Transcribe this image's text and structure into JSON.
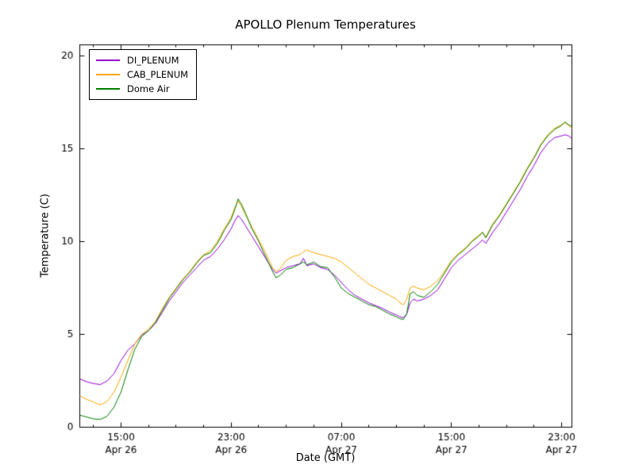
{
  "chart_data": {
    "type": "line",
    "title": "APOLLO Plenum Temperatures",
    "xlabel": "Date (GMT)",
    "ylabel": "Temperature (C)",
    "x_unit": "hours after Apr 26 12:00 GMT",
    "xlim": [
      0,
      35.75
    ],
    "ylim": [
      0,
      20.6
    ],
    "yticks": [
      0,
      5,
      10,
      15,
      20
    ],
    "xticks": [
      {
        "t": 3,
        "time": "15:00",
        "date": "Apr 26"
      },
      {
        "t": 11,
        "time": "23:00",
        "date": "Apr 26"
      },
      {
        "t": 19,
        "time": "07:00",
        "date": "Apr 27"
      },
      {
        "t": 27,
        "time": "15:00",
        "date": "Apr 27"
      },
      {
        "t": 35,
        "time": "23:00",
        "date": "Apr 27"
      }
    ],
    "x_minor_ticks": [
      1,
      5,
      7,
      9,
      13,
      15,
      17,
      21,
      23,
      25,
      29,
      31,
      33
    ],
    "grid": false,
    "legend_position": "upper-left",
    "x": [
      0,
      0.5,
      1,
      1.5,
      2,
      2.5,
      3,
      3.5,
      4,
      4.5,
      5,
      5.5,
      6,
      6.5,
      7,
      7.5,
      8,
      8.5,
      9,
      9.5,
      10,
      10.5,
      11,
      11.25,
      11.5,
      11.75,
      12,
      12.5,
      13,
      13.5,
      14,
      14.25,
      14.5,
      15,
      15.5,
      16,
      16.25,
      16.5,
      17,
      17.5,
      18,
      18.5,
      19,
      19.5,
      20,
      20.5,
      21,
      21.5,
      22,
      22.5,
      23,
      23.25,
      23.5,
      23.75,
      24,
      24.25,
      24.5,
      25,
      25.5,
      26,
      26.5,
      27,
      27.5,
      28,
      28.5,
      29,
      29.25,
      29.5,
      30,
      30.5,
      31,
      31.5,
      32,
      32.5,
      33,
      33.5,
      34,
      34.5,
      35,
      35.25,
      35.5,
      35.75
    ],
    "series": [
      {
        "name": "DI_PLENUM",
        "color": "#9400d3",
        "values": [
          2.6,
          2.45,
          2.35,
          2.3,
          2.5,
          2.9,
          3.6,
          4.15,
          4.5,
          4.95,
          5.2,
          5.6,
          6.2,
          6.8,
          7.3,
          7.8,
          8.2,
          8.6,
          9.0,
          9.2,
          9.6,
          10.1,
          10.7,
          11.1,
          11.4,
          11.2,
          10.9,
          10.3,
          9.7,
          9.1,
          8.5,
          8.3,
          8.4,
          8.6,
          8.7,
          8.8,
          9.1,
          8.7,
          8.8,
          8.6,
          8.5,
          8.2,
          7.8,
          7.4,
          7.1,
          6.9,
          6.7,
          6.55,
          6.4,
          6.2,
          6.05,
          5.95,
          5.9,
          6.1,
          6.7,
          6.9,
          6.8,
          6.9,
          7.1,
          7.4,
          8.0,
          8.6,
          9.0,
          9.3,
          9.6,
          9.9,
          10.1,
          9.9,
          10.5,
          11.0,
          11.6,
          12.2,
          12.8,
          13.5,
          14.1,
          14.8,
          15.3,
          15.6,
          15.7,
          15.75,
          15.7,
          15.55
        ]
      },
      {
        "name": "CAB_PLENUM",
        "color": "#ffa500",
        "values": [
          1.7,
          1.5,
          1.35,
          1.2,
          1.4,
          1.9,
          2.7,
          3.6,
          4.5,
          5.0,
          5.3,
          5.7,
          6.4,
          7.0,
          7.5,
          8.0,
          8.4,
          8.9,
          9.3,
          9.5,
          10.0,
          10.7,
          11.3,
          11.8,
          12.2,
          11.9,
          11.5,
          10.8,
          10.1,
          9.4,
          8.6,
          8.4,
          8.5,
          9.0,
          9.2,
          9.3,
          9.45,
          9.55,
          9.4,
          9.3,
          9.2,
          9.1,
          8.9,
          8.6,
          8.3,
          8.0,
          7.7,
          7.5,
          7.3,
          7.1,
          6.9,
          6.7,
          6.6,
          6.9,
          7.5,
          7.6,
          7.5,
          7.4,
          7.6,
          7.9,
          8.4,
          9.0,
          9.35,
          9.65,
          10.05,
          10.35,
          10.5,
          10.25,
          10.95,
          11.45,
          12.05,
          12.65,
          13.25,
          13.95,
          14.55,
          15.25,
          15.75,
          16.1,
          16.3,
          16.4,
          16.25,
          16.1
        ]
      },
      {
        "name": "Dome Air",
        "color": "#008000",
        "values": [
          0.65,
          0.55,
          0.45,
          0.42,
          0.6,
          1.1,
          1.9,
          3.1,
          4.2,
          4.9,
          5.2,
          5.65,
          6.3,
          6.95,
          7.45,
          7.95,
          8.35,
          8.85,
          9.25,
          9.4,
          9.9,
          10.6,
          11.2,
          11.7,
          12.3,
          12.0,
          11.6,
          10.7,
          10.0,
          9.2,
          8.4,
          8.05,
          8.15,
          8.5,
          8.6,
          8.8,
          8.9,
          8.75,
          8.9,
          8.65,
          8.6,
          8.1,
          7.5,
          7.2,
          7.0,
          6.8,
          6.6,
          6.5,
          6.3,
          6.1,
          5.95,
          5.85,
          5.8,
          6.1,
          7.2,
          7.3,
          7.1,
          7.0,
          7.3,
          7.7,
          8.3,
          8.9,
          9.3,
          9.6,
          10.0,
          10.3,
          10.5,
          10.2,
          10.9,
          11.4,
          12.0,
          12.6,
          13.2,
          13.9,
          14.5,
          15.2,
          15.7,
          16.05,
          16.25,
          16.45,
          16.3,
          16.2
        ]
      }
    ]
  }
}
